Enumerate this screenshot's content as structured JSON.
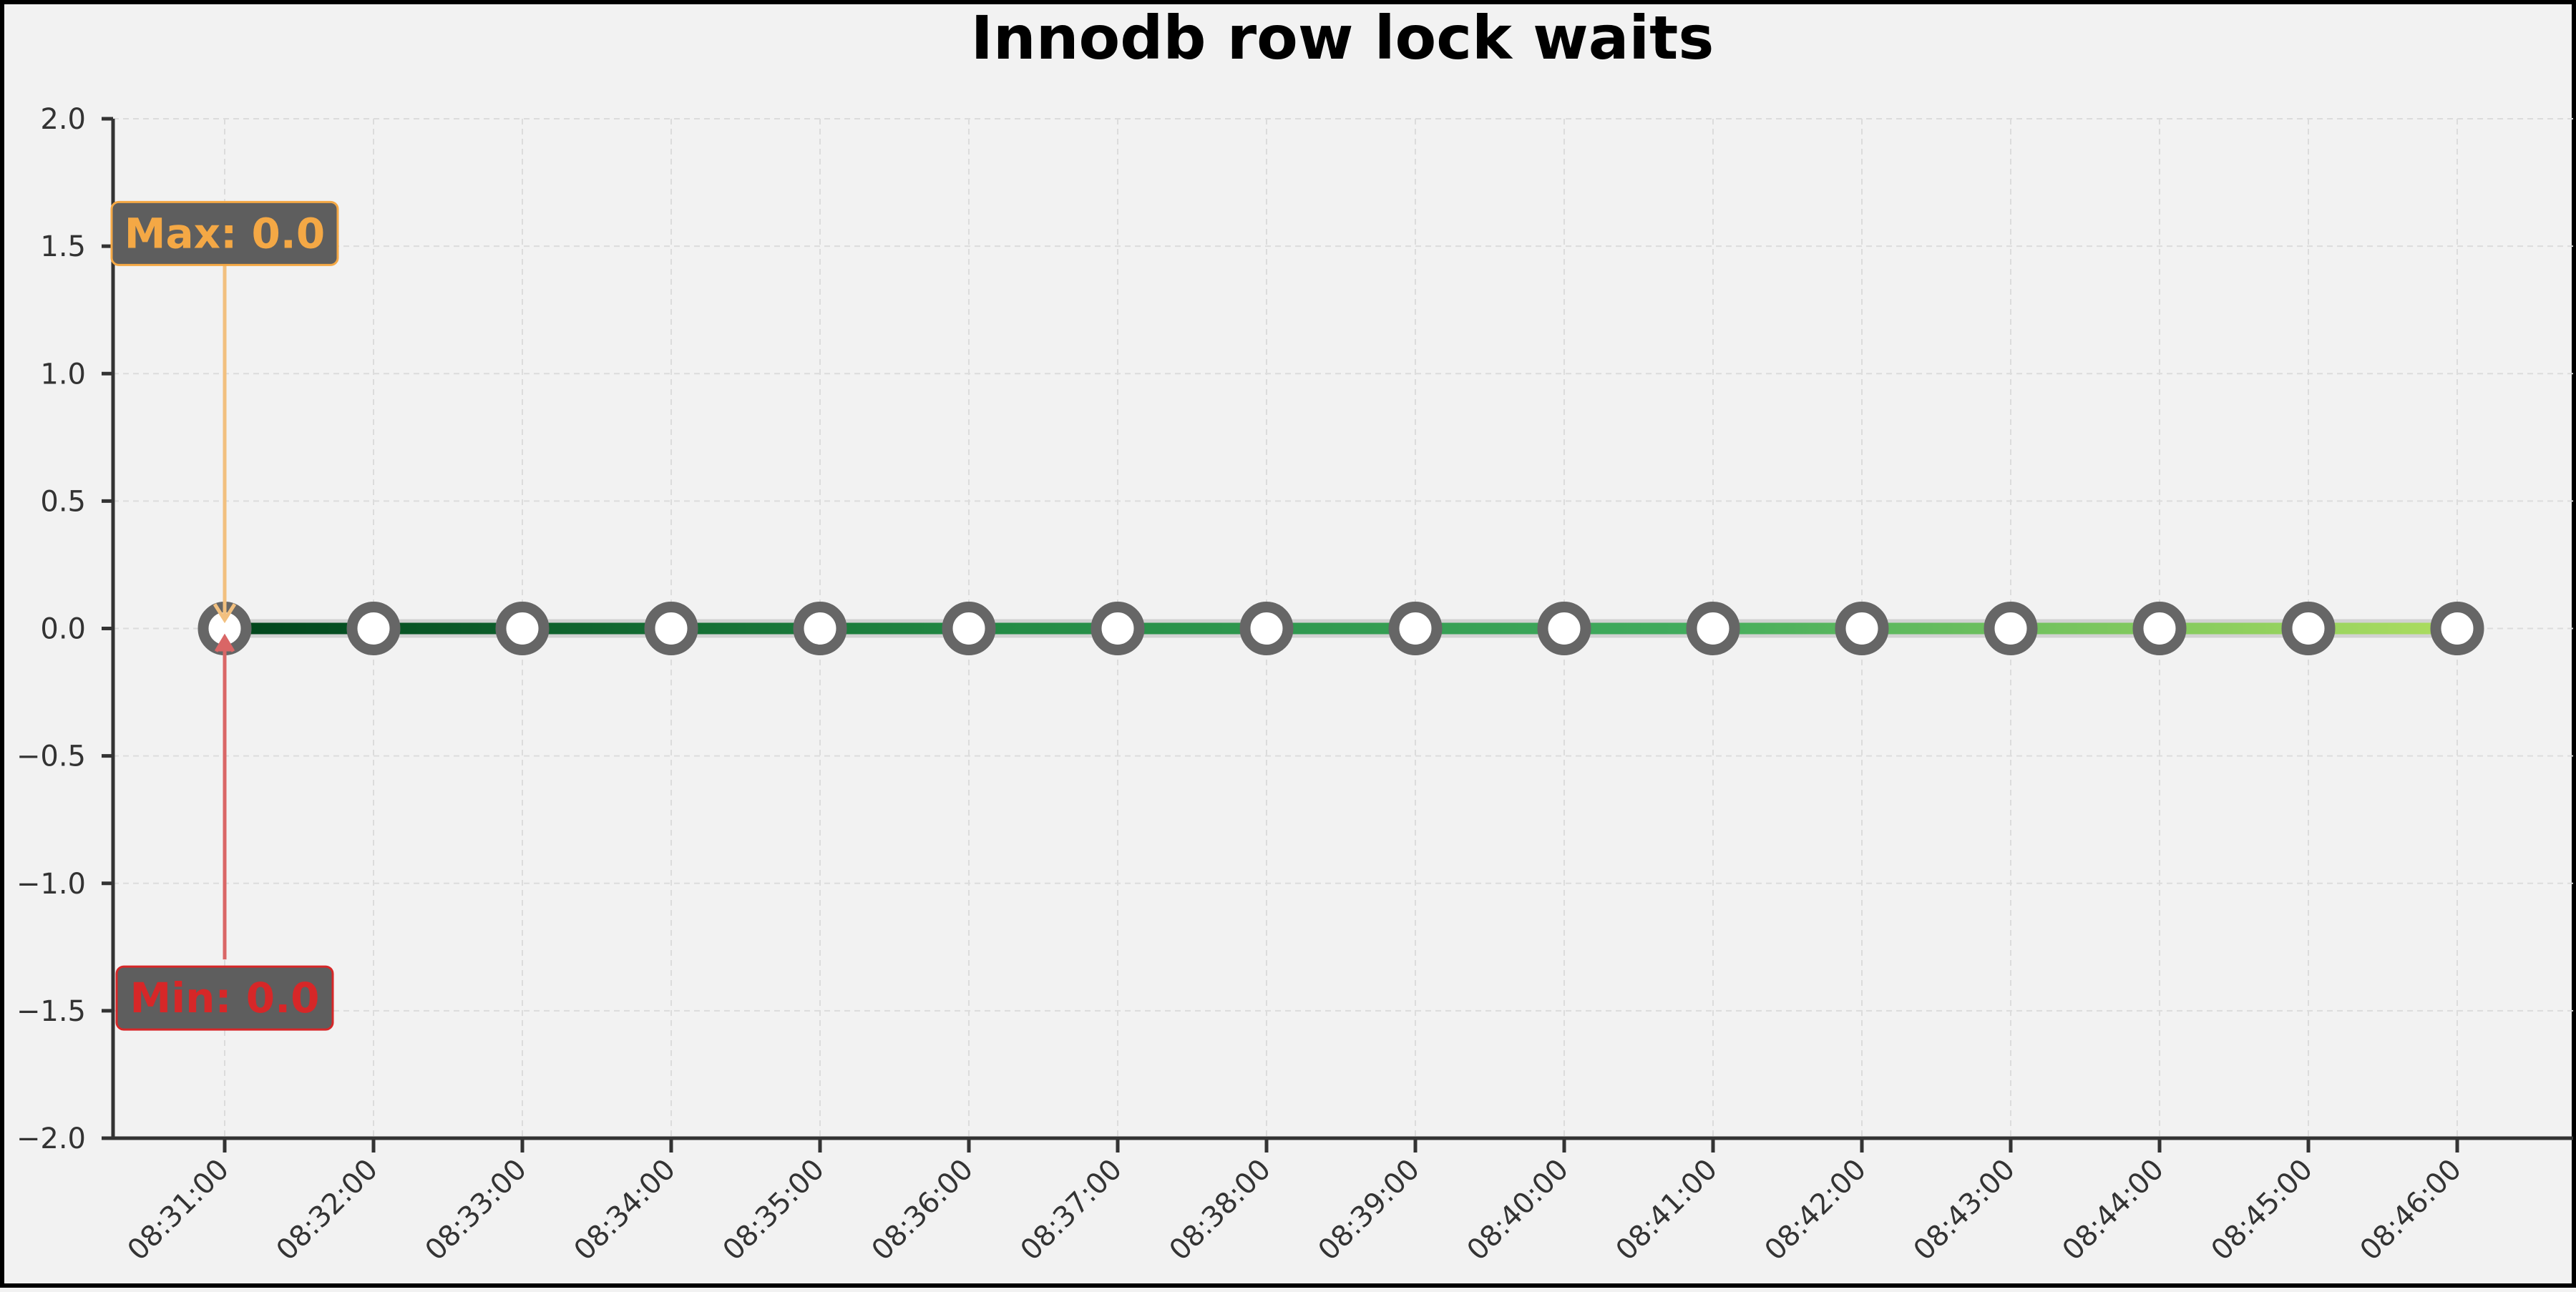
{
  "chart_data": {
    "type": "line",
    "title": "Innodb row lock waits",
    "xlabel": "",
    "ylabel": "",
    "x": [
      "08:31:00",
      "08:32:00",
      "08:33:00",
      "08:34:00",
      "08:35:00",
      "08:36:00",
      "08:37:00",
      "08:38:00",
      "08:39:00",
      "08:40:00",
      "08:41:00",
      "08:42:00",
      "08:43:00",
      "08:44:00",
      "08:45:00",
      "08:46:00"
    ],
    "series": [
      {
        "values": [
          0,
          0,
          0,
          0,
          0,
          0,
          0,
          0,
          0,
          0,
          0,
          0,
          0,
          0,
          0,
          0
        ]
      }
    ],
    "ylim": [
      -2.0,
      2.0
    ],
    "yticks": [
      "2.0",
      "1.5",
      "1.0",
      "0.5",
      "0.0",
      "−0.5",
      "−1.0",
      "−1.5",
      "−2.0"
    ],
    "grid": true,
    "line_gradient": [
      "#00441b",
      "#238b45",
      "#41ab5d",
      "#addd5f"
    ],
    "annotations": [
      {
        "label": "Max: 0.0",
        "color": "#f4a845",
        "arrow_color": "#f2c07f",
        "box_color": "#5e5e5e",
        "value": 1.55,
        "points_to": 0
      },
      {
        "label": "Min: 0.0",
        "color": "#d62728",
        "arrow_color": "#d96666",
        "box_color": "#5e5e5e",
        "value": -1.45,
        "points_to": 0
      }
    ]
  }
}
